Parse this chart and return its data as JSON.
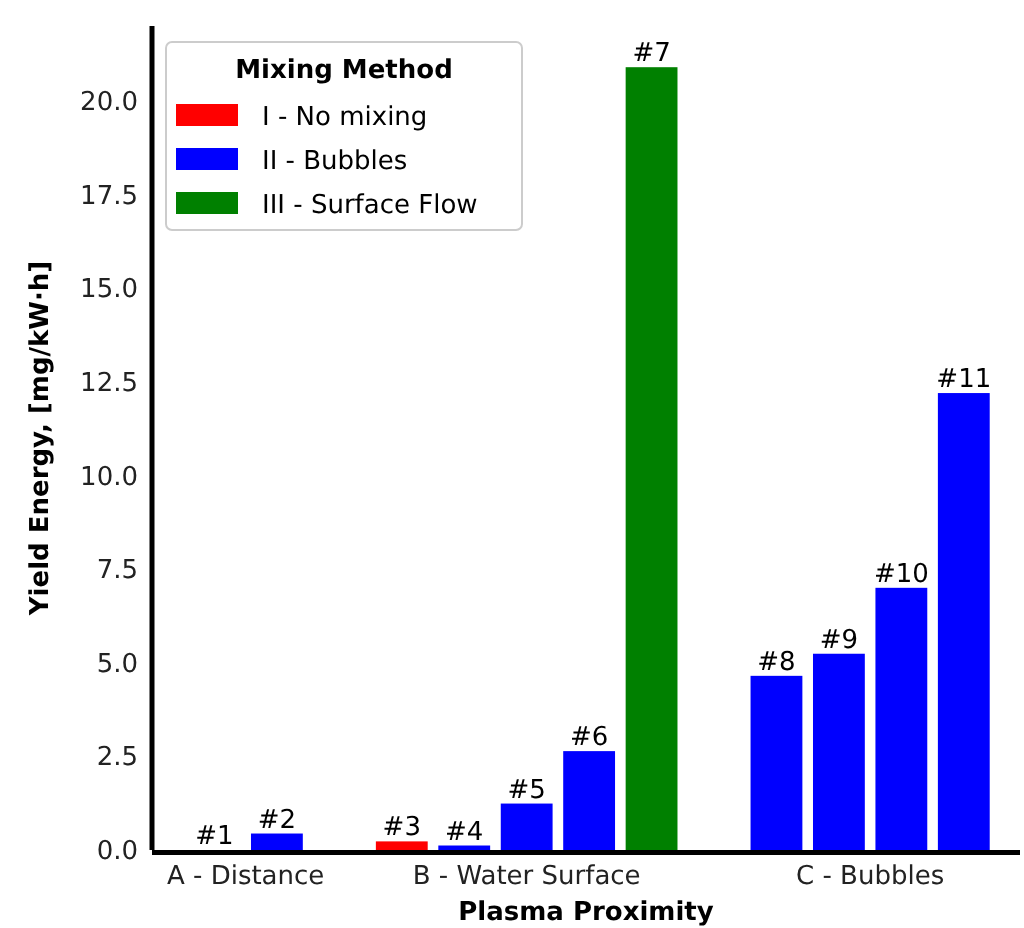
{
  "chart_data": {
    "type": "bar",
    "xlabel": "Plasma Proximity",
    "ylabel": "Yield Energy, [mg/kW·h]",
    "legend_title": "Mixing Method",
    "legend": "top left",
    "grid": false,
    "categories": [
      null,
      "A - Distance",
      null,
      null,
      null,
      null,
      null,
      null,
      null,
      null,
      "B - Water Surface",
      null,
      null,
      null,
      null,
      null,
      null,
      null,
      null,
      null,
      null,
      "C - Bubbles",
      null,
      null,
      null,
      null
    ],
    "ylim": [
      0,
      22
    ],
    "yticks": [
      {
        "value": 0,
        "label": "0.0"
      },
      {
        "value": 2.5,
        "label": "2.5"
      },
      {
        "value": 5,
        "label": "5.0"
      },
      {
        "value": 7.5,
        "label": "7.5"
      },
      {
        "value": 10,
        "label": "10.0"
      },
      {
        "value": 12.5,
        "label": "12.5"
      },
      {
        "value": 15,
        "label": "15.0"
      },
      {
        "value": 17.5,
        "label": "17.5"
      },
      {
        "value": 20,
        "label": "20.0"
      }
    ],
    "annotations": [
      {
        "text": "#1",
        "y": 0
      },
      {
        "text": "#2",
        "y": 0.44
      },
      {
        "text": "#3",
        "y": 0.23
      },
      {
        "text": "#4",
        "y": 0.12
      },
      {
        "text": "#5",
        "y": 1.24
      },
      {
        "text": "#6",
        "y": 2.64
      },
      {
        "text": "#7",
        "y": 20.9
      },
      {
        "text": "#8",
        "y": 4.65
      },
      {
        "text": "#9",
        "y": 5.24
      },
      {
        "text": "#10",
        "y": 7.0
      },
      {
        "text": "#11",
        "y": 12.2
      }
    ],
    "series": [
      {
        "name": "I - No mixing",
        "color": "#ff0000",
        "values": [
          0,
          null,
          null,
          null,
          null,
          null,
          0.23,
          null,
          null,
          null,
          null,
          null,
          null,
          null,
          null,
          null,
          null,
          null,
          null,
          null,
          null,
          null,
          null,
          null,
          null,
          null
        ]
      },
      {
        "name": "II - Bubbles",
        "color": "#0000ff",
        "values": [
          null,
          null,
          0.44,
          null,
          null,
          null,
          null,
          null,
          0.12,
          null,
          1.24,
          null,
          2.64,
          null,
          null,
          null,
          null,
          null,
          4.65,
          null,
          5.24,
          null,
          7.0,
          null,
          12.2,
          null
        ]
      },
      {
        "name": "III - Surface Flow",
        "color": "#008000",
        "values": [
          null,
          null,
          null,
          null,
          null,
          null,
          null,
          null,
          null,
          null,
          null,
          null,
          null,
          null,
          20.9,
          null,
          null,
          null,
          null,
          null,
          null,
          null,
          null,
          null,
          null,
          null
        ]
      }
    ]
  }
}
